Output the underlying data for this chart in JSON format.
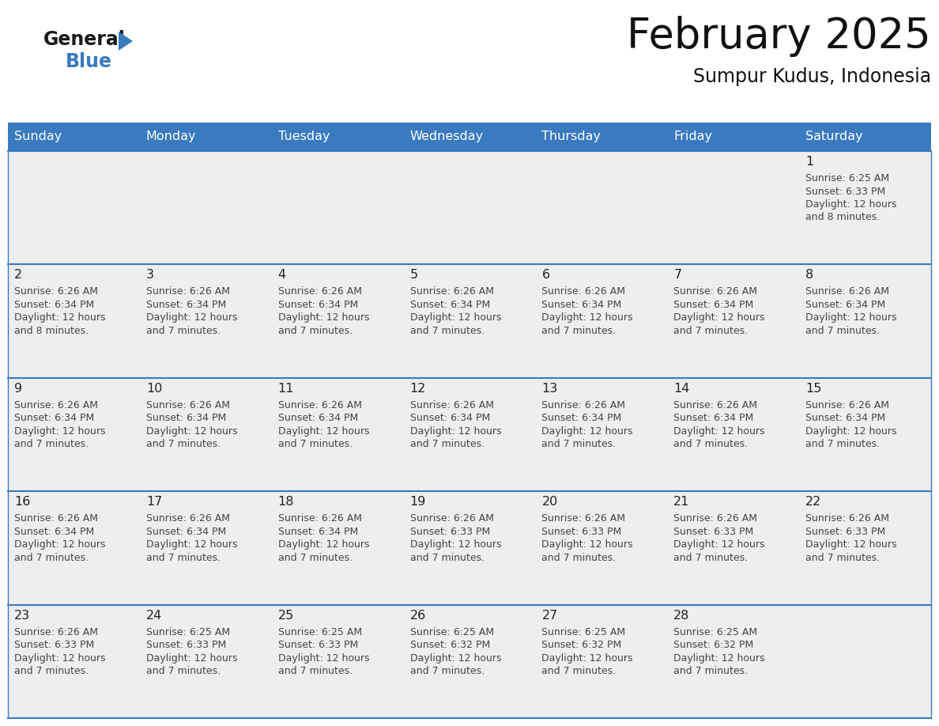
{
  "title": "February 2025",
  "subtitle": "Sumpur Kudus, Indonesia",
  "header_color": "#3a7abf",
  "header_text_color": "#ffffff",
  "cell_bg_color": "#eeeeee",
  "border_color": "#3a7abf",
  "text_color": "#333333",
  "day_number_color": "#222222",
  "info_text_color": "#444444",
  "days_of_week": [
    "Sunday",
    "Monday",
    "Tuesday",
    "Wednesday",
    "Thursday",
    "Friday",
    "Saturday"
  ],
  "calendar_data": [
    [
      null,
      null,
      null,
      null,
      null,
      null,
      {
        "day": 1,
        "sunrise": "6:25 AM",
        "sunset": "6:33 PM",
        "daylight": "12 hours and 8 minutes."
      }
    ],
    [
      {
        "day": 2,
        "sunrise": "6:26 AM",
        "sunset": "6:34 PM",
        "daylight": "12 hours and 8 minutes."
      },
      {
        "day": 3,
        "sunrise": "6:26 AM",
        "sunset": "6:34 PM",
        "daylight": "12 hours and 7 minutes."
      },
      {
        "day": 4,
        "sunrise": "6:26 AM",
        "sunset": "6:34 PM",
        "daylight": "12 hours and 7 minutes."
      },
      {
        "day": 5,
        "sunrise": "6:26 AM",
        "sunset": "6:34 PM",
        "daylight": "12 hours and 7 minutes."
      },
      {
        "day": 6,
        "sunrise": "6:26 AM",
        "sunset": "6:34 PM",
        "daylight": "12 hours and 7 minutes."
      },
      {
        "day": 7,
        "sunrise": "6:26 AM",
        "sunset": "6:34 PM",
        "daylight": "12 hours and 7 minutes."
      },
      {
        "day": 8,
        "sunrise": "6:26 AM",
        "sunset": "6:34 PM",
        "daylight": "12 hours and 7 minutes."
      }
    ],
    [
      {
        "day": 9,
        "sunrise": "6:26 AM",
        "sunset": "6:34 PM",
        "daylight": "12 hours and 7 minutes."
      },
      {
        "day": 10,
        "sunrise": "6:26 AM",
        "sunset": "6:34 PM",
        "daylight": "12 hours and 7 minutes."
      },
      {
        "day": 11,
        "sunrise": "6:26 AM",
        "sunset": "6:34 PM",
        "daylight": "12 hours and 7 minutes."
      },
      {
        "day": 12,
        "sunrise": "6:26 AM",
        "sunset": "6:34 PM",
        "daylight": "12 hours and 7 minutes."
      },
      {
        "day": 13,
        "sunrise": "6:26 AM",
        "sunset": "6:34 PM",
        "daylight": "12 hours and 7 minutes."
      },
      {
        "day": 14,
        "sunrise": "6:26 AM",
        "sunset": "6:34 PM",
        "daylight": "12 hours and 7 minutes."
      },
      {
        "day": 15,
        "sunrise": "6:26 AM",
        "sunset": "6:34 PM",
        "daylight": "12 hours and 7 minutes."
      }
    ],
    [
      {
        "day": 16,
        "sunrise": "6:26 AM",
        "sunset": "6:34 PM",
        "daylight": "12 hours and 7 minutes."
      },
      {
        "day": 17,
        "sunrise": "6:26 AM",
        "sunset": "6:34 PM",
        "daylight": "12 hours and 7 minutes."
      },
      {
        "day": 18,
        "sunrise": "6:26 AM",
        "sunset": "6:34 PM",
        "daylight": "12 hours and 7 minutes."
      },
      {
        "day": 19,
        "sunrise": "6:26 AM",
        "sunset": "6:33 PM",
        "daylight": "12 hours and 7 minutes."
      },
      {
        "day": 20,
        "sunrise": "6:26 AM",
        "sunset": "6:33 PM",
        "daylight": "12 hours and 7 minutes."
      },
      {
        "day": 21,
        "sunrise": "6:26 AM",
        "sunset": "6:33 PM",
        "daylight": "12 hours and 7 minutes."
      },
      {
        "day": 22,
        "sunrise": "6:26 AM",
        "sunset": "6:33 PM",
        "daylight": "12 hours and 7 minutes."
      }
    ],
    [
      {
        "day": 23,
        "sunrise": "6:26 AM",
        "sunset": "6:33 PM",
        "daylight": "12 hours and 7 minutes."
      },
      {
        "day": 24,
        "sunrise": "6:25 AM",
        "sunset": "6:33 PM",
        "daylight": "12 hours and 7 minutes."
      },
      {
        "day": 25,
        "sunrise": "6:25 AM",
        "sunset": "6:33 PM",
        "daylight": "12 hours and 7 minutes."
      },
      {
        "day": 26,
        "sunrise": "6:25 AM",
        "sunset": "6:32 PM",
        "daylight": "12 hours and 7 minutes."
      },
      {
        "day": 27,
        "sunrise": "6:25 AM",
        "sunset": "6:32 PM",
        "daylight": "12 hours and 7 minutes."
      },
      {
        "day": 28,
        "sunrise": "6:25 AM",
        "sunset": "6:32 PM",
        "daylight": "12 hours and 7 minutes."
      },
      null
    ]
  ]
}
